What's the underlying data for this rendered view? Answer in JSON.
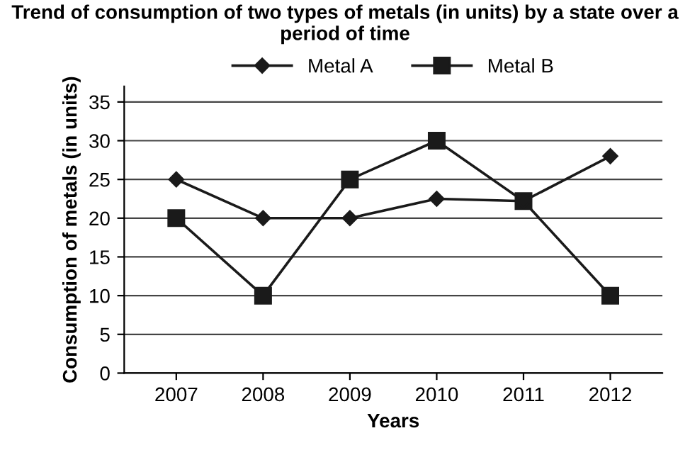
{
  "chart_data": {
    "type": "line",
    "title": "Trend of consumption of two types of metals (in units) by a state over a period of time",
    "xlabel": "Years",
    "ylabel": "Consumption of metals (in units)",
    "categories": [
      "2007",
      "2008",
      "2009",
      "2010",
      "2011",
      "2012"
    ],
    "series": [
      {
        "name": "Metal A",
        "color": "#1a1a1a",
        "marker": "diamond",
        "values": [
          25,
          20,
          20,
          22.5,
          22.2,
          28
        ]
      },
      {
        "name": "Metal B",
        "color": "#1a1a1a",
        "marker": "square",
        "values": [
          20,
          10,
          25,
          30,
          22.2,
          10
        ]
      }
    ],
    "ylim": [
      0,
      37
    ],
    "yticks": [
      0,
      5,
      10,
      15,
      20,
      25,
      30,
      35
    ],
    "grid": "y",
    "legend": "top",
    "line_style": "solid"
  }
}
